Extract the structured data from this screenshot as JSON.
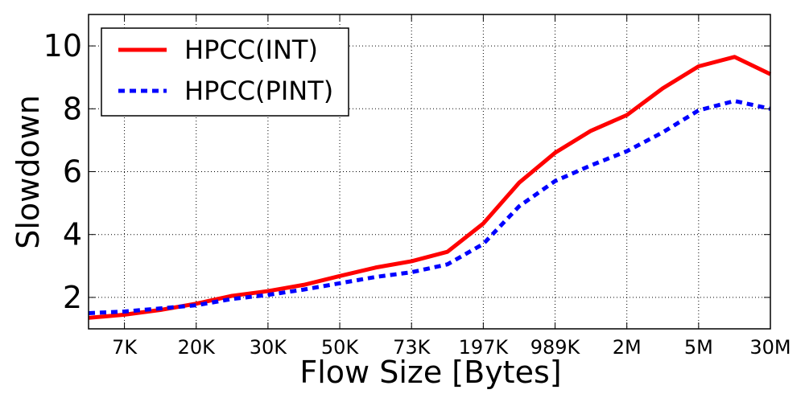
{
  "chart_data": {
    "type": "line",
    "title": "",
    "xlabel": "Flow Size [Bytes]",
    "ylabel": "Slowdown",
    "categories": [
      "",
      "7K",
      "",
      "20K",
      "",
      "30K",
      "",
      "50K",
      "",
      "73K",
      "",
      "197K",
      "",
      "989K",
      "",
      "2M",
      "",
      "5M",
      "",
      "30M"
    ],
    "x_tick_labels": [
      "7K",
      "20K",
      "30K",
      "50K",
      "73K",
      "197K",
      "989K",
      "2M",
      "5M",
      "30M"
    ],
    "y_ticks": [
      2,
      4,
      6,
      8,
      10
    ],
    "ylim": [
      1,
      11
    ],
    "grid": true,
    "legend_position": "top-left",
    "series": [
      {
        "name": "HPCC(INT)",
        "color": "#ff0000",
        "style": "solid",
        "values": [
          1.35,
          1.45,
          1.6,
          1.8,
          2.05,
          2.2,
          2.4,
          2.68,
          2.95,
          3.15,
          3.45,
          4.35,
          5.65,
          6.6,
          7.3,
          7.8,
          8.65,
          9.35,
          9.65,
          9.1
        ]
      },
      {
        "name": "HPCC(PINT)",
        "color": "#0000ff",
        "style": "dashed",
        "values": [
          1.5,
          1.55,
          1.65,
          1.75,
          1.95,
          2.08,
          2.25,
          2.45,
          2.65,
          2.8,
          3.05,
          3.7,
          4.9,
          5.7,
          6.2,
          6.65,
          7.25,
          7.95,
          8.25,
          8.0
        ]
      }
    ]
  }
}
